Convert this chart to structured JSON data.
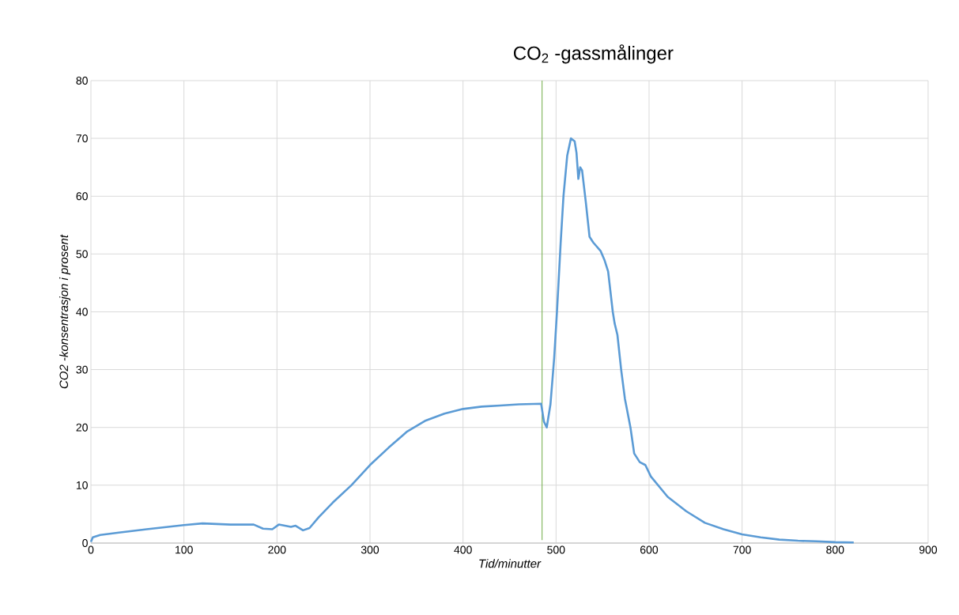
{
  "chart_data": {
    "type": "line",
    "title": "CO$_{2}$ -gassmålinger",
    "xlabel": "Tid/minutter",
    "ylabel": "CO2 -konsentrasjon i prosent",
    "xlim": [
      0,
      900
    ],
    "ylim": [
      0,
      80
    ],
    "xticks": [
      0,
      100,
      200,
      300,
      400,
      500,
      600,
      700,
      800,
      900
    ],
    "yticks": [
      0,
      10,
      20,
      30,
      40,
      50,
      60,
      70,
      80
    ],
    "grid": true,
    "marker": "none",
    "line_style": "solid",
    "ref_lines": [
      {
        "axis": "x",
        "value": 485,
        "color": "#70ad47"
      }
    ],
    "series": [
      {
        "color": "#5b9bd5",
        "x": [
          0,
          2,
          10,
          30,
          60,
          100,
          120,
          150,
          175,
          185,
          195,
          202,
          215,
          220,
          228,
          235,
          245,
          260,
          280,
          300,
          320,
          340,
          360,
          380,
          400,
          420,
          440,
          460,
          484,
          487,
          490,
          494,
          498,
          501,
          505,
          508,
          512,
          516,
          520,
          522,
          524,
          526,
          528,
          532,
          536,
          540,
          548,
          552,
          556,
          561,
          563,
          566,
          570,
          574,
          580,
          584,
          590,
          596,
          602,
          620,
          640,
          660,
          680,
          700,
          720,
          740,
          760,
          780,
          800,
          820
        ],
        "values": [
          0.2,
          1.0,
          1.4,
          1.8,
          2.4,
          3.1,
          3.4,
          3.2,
          3.2,
          2.5,
          2.4,
          3.2,
          2.8,
          3.0,
          2.2,
          2.6,
          4.5,
          7.0,
          10,
          13.5,
          16.5,
          19.3,
          21.2,
          22.4,
          23.2,
          23.6,
          23.8,
          24.0,
          24.1,
          21,
          20,
          24,
          32,
          40,
          52,
          60,
          67,
          70,
          69.5,
          67.5,
          63,
          65,
          64.5,
          59,
          53,
          52,
          50.5,
          49,
          47,
          40,
          38,
          36,
          30,
          25,
          20,
          15.5,
          14,
          13.5,
          11.5,
          8,
          5.5,
          3.5,
          2.4,
          1.5,
          1.0,
          0.6,
          0.4,
          0.3,
          0.15,
          0.1
        ]
      }
    ]
  }
}
